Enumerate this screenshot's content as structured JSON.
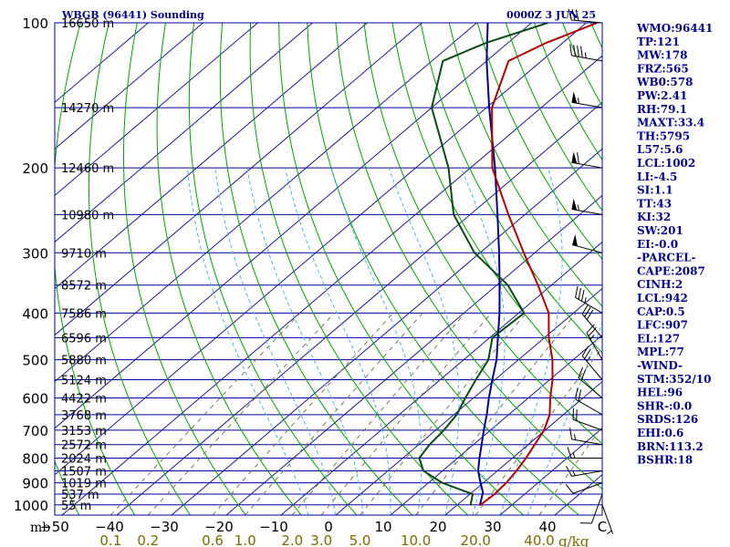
{
  "chart_data": {
    "type": "line",
    "title": "WBGB (96441) Sounding",
    "datetime": "0000Z  3 JUN 25",
    "pressure_unit": "mb",
    "pressure_ticks": [
      "100",
      "200",
      "300",
      "400",
      "500",
      "600",
      "700",
      "800",
      "900",
      "1000"
    ],
    "height_labels": [
      {
        "p": 100,
        "label": "16650 m"
      },
      {
        "p": 150,
        "label": "14270 m"
      },
      {
        "p": 200,
        "label": "12460 m"
      },
      {
        "p": 250,
        "label": "10980 m"
      },
      {
        "p": 300,
        "label": "9710 m"
      },
      {
        "p": 350,
        "label": "8572 m"
      },
      {
        "p": 400,
        "label": "7586 m"
      },
      {
        "p": 450,
        "label": "6596 m"
      },
      {
        "p": 500,
        "label": "5880 m"
      },
      {
        "p": 550,
        "label": "5124 m"
      },
      {
        "p": 600,
        "label": "4422 m"
      },
      {
        "p": 650,
        "label": "3768 m"
      },
      {
        "p": 700,
        "label": "3153 m"
      },
      {
        "p": 750,
        "label": "2572 m"
      },
      {
        "p": 800,
        "label": "2024 m"
      },
      {
        "p": 850,
        "label": "1507 m"
      },
      {
        "p": 900,
        "label": "1019 m"
      },
      {
        "p": 950,
        "label": "537 m"
      },
      {
        "p": 1000,
        "label": "55 m"
      }
    ],
    "temp_ticks": [
      "−50",
      "−40",
      "−30",
      "−20",
      "−10",
      "0",
      "10",
      "20",
      "30",
      "40",
      "C"
    ],
    "mixing_ratio_unit": "g/kg",
    "mixing_ratio_ticks": [
      {
        "w": 0.1,
        "label": "0.1"
      },
      {
        "w": 0.2,
        "label": "0.2"
      },
      {
        "w": 0.6,
        "label": "0.6"
      },
      {
        "w": 1.0,
        "label": "1.0"
      },
      {
        "w": 2.0,
        "label": "2.0"
      },
      {
        "w": 3.0,
        "label": "3.0"
      },
      {
        "w": 5.0,
        "label": "5.0"
      },
      {
        "w": 10.0,
        "label": "10.0"
      },
      {
        "w": 20.0,
        "label": "20.0"
      },
      {
        "w": 40.0,
        "label": "40.0"
      }
    ],
    "temperature_profile": [
      [
        1002,
        24.2
      ],
      [
        950,
        24.5
      ],
      [
        900,
        24.2
      ],
      [
        850,
        23.5
      ],
      [
        800,
        22.5
      ],
      [
        750,
        21.2
      ],
      [
        700,
        19.8
      ],
      [
        650,
        17.5
      ],
      [
        600,
        14.0
      ],
      [
        550,
        10.5
      ],
      [
        500,
        6.2
      ],
      [
        450,
        0.8
      ],
      [
        400,
        -4.5
      ],
      [
        350,
        -12.5
      ],
      [
        300,
        -22.0
      ],
      [
        250,
        -33.0
      ],
      [
        200,
        -46.0
      ],
      [
        150,
        -59.0
      ],
      [
        120,
        -66.0
      ],
      [
        110,
        -63.0
      ],
      [
        100,
        -58.0
      ]
    ],
    "dewpoint_profile": [
      [
        1002,
        22.5
      ],
      [
        950,
        20.5
      ],
      [
        900,
        12.5
      ],
      [
        850,
        6.5
      ],
      [
        800,
        3.0
      ],
      [
        750,
        2.0
      ],
      [
        700,
        1.5
      ],
      [
        650,
        0.5
      ],
      [
        600,
        -1.5
      ],
      [
        550,
        -3.5
      ],
      [
        500,
        -5.5
      ],
      [
        450,
        -9.5
      ],
      [
        400,
        -9.0
      ],
      [
        350,
        -18.0
      ],
      [
        300,
        -31.0
      ],
      [
        250,
        -43.0
      ],
      [
        200,
        -54.0
      ],
      [
        150,
        -70.0
      ],
      [
        120,
        -78.0
      ],
      [
        110,
        -74.0
      ],
      [
        100,
        -67.0
      ]
    ],
    "parcel_profile": [
      [
        1002,
        24.2
      ],
      [
        942,
        22.0
      ],
      [
        900,
        19.5
      ],
      [
        850,
        16.5
      ],
      [
        800,
        14.0
      ],
      [
        750,
        11.5
      ],
      [
        700,
        8.8
      ],
      [
        650,
        6.0
      ],
      [
        600,
        2.8
      ],
      [
        550,
        -0.5
      ],
      [
        500,
        -4.0
      ],
      [
        450,
        -8.5
      ],
      [
        400,
        -13.5
      ],
      [
        350,
        -19.5
      ],
      [
        300,
        -26.5
      ],
      [
        250,
        -35.0
      ],
      [
        200,
        -45.5
      ],
      [
        150,
        -59.5
      ],
      [
        120,
        -70.0
      ],
      [
        100,
        -78.0
      ]
    ],
    "wind_barbs": [
      {
        "p": 1000,
        "dir": 160,
        "spd": 5
      },
      {
        "p": 950,
        "dir": 200,
        "spd": 10
      },
      {
        "p": 900,
        "dir": 250,
        "spd": 10
      },
      {
        "p": 850,
        "dir": 260,
        "spd": 15
      },
      {
        "p": 800,
        "dir": 270,
        "spd": 15
      },
      {
        "p": 750,
        "dir": 280,
        "spd": 15
      },
      {
        "p": 700,
        "dir": 290,
        "spd": 20
      },
      {
        "p": 650,
        "dir": 300,
        "spd": 20
      },
      {
        "p": 600,
        "dir": 310,
        "spd": 20
      },
      {
        "p": 550,
        "dir": 320,
        "spd": 25
      },
      {
        "p": 500,
        "dir": 330,
        "spd": 25
      },
      {
        "p": 450,
        "dir": 320,
        "spd": 30
      },
      {
        "p": 400,
        "dir": 300,
        "spd": 35
      },
      {
        "p": 300,
        "dir": 285,
        "spd": 50
      },
      {
        "p": 250,
        "dir": 280,
        "spd": 55
      },
      {
        "p": 200,
        "dir": 280,
        "spd": 60
      },
      {
        "p": 150,
        "dir": 280,
        "spd": 55
      },
      {
        "p": 120,
        "dir": 280,
        "spd": 45
      },
      {
        "p": 100,
        "dir": 275,
        "spd": 30
      }
    ],
    "xlim": [
      -50,
      50
    ],
    "ylim": [
      1050,
      100
    ],
    "grid": true,
    "series": [
      {
        "name": "temperature",
        "color": "#b00000"
      },
      {
        "name": "dewpoint",
        "color": "#0a4a14"
      },
      {
        "name": "parcel",
        "color": "#00008b"
      }
    ]
  },
  "indices": [
    "WMO:96441",
    "TP:121",
    "MW:178",
    "FRZ:565",
    "WB0:578",
    "PW:2.41",
    "RH:79.1",
    "MAXT:33.4",
    "TH:5795",
    "L57:5.6",
    "LCL:1002",
    "LI:-4.5",
    "SI:1.1",
    "TT:43",
    "KI:32",
    "SW:201",
    "EI:-0.0",
    "-PARCEL-",
    "CAPE:2087",
    "CINH:2",
    "LCL:942",
    "CAP:0.5",
    "LFC:907",
    "EL:127",
    "MPL:77",
    "-WIND-",
    "STM:352/10",
    "HEL:96",
    "SHR-:0.0",
    "SRDS:126",
    "EHI:0.6",
    "BRN:113.2",
    "BSHR:18"
  ],
  "colors": {
    "frame": "#0000a0",
    "isotherm": "#1a1a8c",
    "dry_adiabat": "#00a000",
    "moist_adiabat": "#4db6e6",
    "mixing_ratio": "#7a7a50",
    "temperature": "#b00000",
    "dewpoint": "#0a4a14",
    "parcel": "#00008b",
    "tick_text": "#000000",
    "mixing_text": "#7a6a00",
    "index_text": "#00008b"
  }
}
